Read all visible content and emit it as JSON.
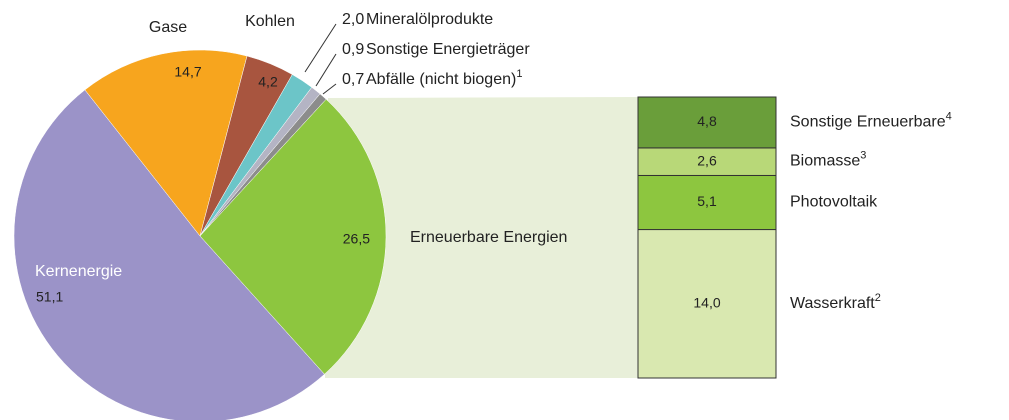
{
  "chart_data": [
    {
      "type": "pie",
      "categories": [
        "Kernenergie",
        "Gase",
        "Kohlen",
        "Mineralölprodukte",
        "Sonstige Energieträger",
        "Abfälle (nicht biogen)",
        "Erneuerbare Energien"
      ],
      "category_notes": [
        null,
        null,
        null,
        null,
        null,
        "1",
        null
      ],
      "values": [
        51.1,
        14.7,
        4.2,
        2.0,
        0.9,
        0.7,
        26.5
      ],
      "value_labels": [
        "51,1",
        "14,7",
        "4,2",
        "2,0",
        "0,9",
        "0,7",
        "26,5"
      ],
      "colors": [
        "#9b93c8",
        "#f7a51e",
        "#a8553f",
        "#6cc5c8",
        "#b4b4c4",
        "#8c8c8c",
        "#8dc63f"
      ]
    },
    {
      "type": "bar",
      "stacked": true,
      "categories": [
        "Wasserkraft",
        "Photovoltaik",
        "Biomasse",
        "Sonstige Erneuerbare"
      ],
      "category_notes": [
        "2",
        null,
        "3",
        "4"
      ],
      "values": [
        14.0,
        5.1,
        2.6,
        4.8
      ],
      "value_labels": [
        "14,0",
        "5,1",
        "2,6",
        "4,8"
      ],
      "colors": [
        "#d9e8b0",
        "#8dc63f",
        "#b8d878",
        "#6a9e3a"
      ]
    }
  ]
}
